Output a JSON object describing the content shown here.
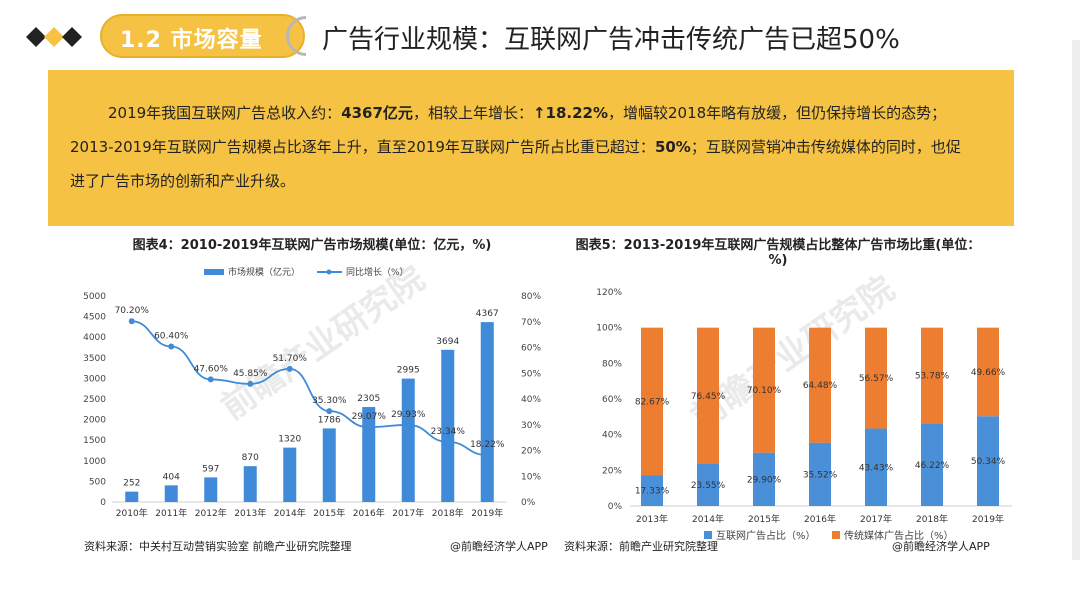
{
  "section_badge": "1.2 市场容量",
  "page_title": "广告行业规模：互联网广告冲击传统广告已超50%",
  "summary": {
    "line1_a": "2019年我国互联网广告总收入约：",
    "line1_b": "4367亿元",
    "line1_c": "，相较上年增长：",
    "line1_d": "↑18.22%",
    "line1_e": "，增幅较2018年略有放缓，但仍保持增长的态势；",
    "line2_a": "2013-2019年互联网广告规模占比逐年上升，直至2019年互联网广告所占比重已超过：",
    "line2_b": "50%",
    "line2_c": "；互联网营销冲击传统媒体的同时，也促",
    "line3": "进了广告市场的创新和产业升级。"
  },
  "watermark": "前瞻产业研究院",
  "chart_data": [
    {
      "type": "bar+line",
      "title": "图表4：2010-2019年互联网广告市场规模(单位：亿元，%)",
      "categories": [
        "2010年",
        "2011年",
        "2012年",
        "2013年",
        "2014年",
        "2015年",
        "2016年",
        "2017年",
        "2018年",
        "2019年"
      ],
      "series": [
        {
          "name": "市场规模（亿元）",
          "type": "bar",
          "axis": "left",
          "values": [
            252,
            404,
            597,
            870,
            1320,
            1786,
            2305,
            2995,
            3694,
            4367
          ],
          "color": "#3f8ad9"
        },
        {
          "name": "同比增长（%）",
          "type": "line",
          "axis": "right",
          "values": [
            70.2,
            60.4,
            47.6,
            45.85,
            51.7,
            35.3,
            29.07,
            29.93,
            23.34,
            18.22
          ],
          "color": "#3f8ad9"
        }
      ],
      "left_ticks": [
        "0",
        "500",
        "1000",
        "1500",
        "2000",
        "2500",
        "3000",
        "3500",
        "4000",
        "4500",
        "5000"
      ],
      "right_ticks": [
        "0%",
        "10%",
        "20%",
        "30%",
        "40%",
        "50%",
        "60%",
        "70%",
        "80%"
      ],
      "ylim_left": [
        0,
        5000
      ],
      "ylim_right": [
        0,
        80
      ],
      "source": "资料来源：中关村互动营销实验室 前瞻产业研究院整理",
      "credit": "@前瞻经济学人APP"
    },
    {
      "type": "stacked-bar",
      "title": "图表5：2013-2019年互联网广告规模占比整体广告市场比重(单位：%)",
      "categories": [
        "2013年",
        "2014年",
        "2015年",
        "2016年",
        "2017年",
        "2018年",
        "2019年"
      ],
      "series": [
        {
          "name": "互联网广告占比（%）",
          "values": [
            17.33,
            23.55,
            29.9,
            35.52,
            43.43,
            46.22,
            50.34
          ],
          "color": "#4a90d9"
        },
        {
          "name": "传统媒体广告占比（%）",
          "values": [
            82.67,
            76.45,
            70.1,
            64.48,
            56.57,
            53.78,
            49.66
          ],
          "color": "#ed7d31"
        }
      ],
      "y_ticks": [
        "0%",
        "20%",
        "40%",
        "60%",
        "80%",
        "100%",
        "120%"
      ],
      "ylim": [
        0,
        120
      ],
      "source": "资料来源：前瞻产业研究院整理",
      "credit": "@前瞻经济学人APP"
    }
  ]
}
